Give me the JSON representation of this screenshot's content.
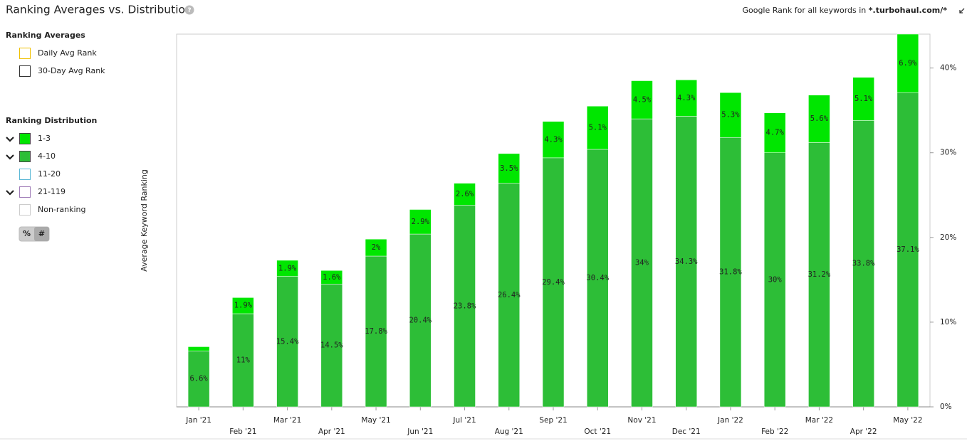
{
  "header": {
    "prefix": "Google Rank for all keywords in ",
    "domain": "*.turbohaul.com/*"
  },
  "legend": {
    "averages_title": "Ranking Averages",
    "averages_items": [
      {
        "name": "Daily Avg Rank",
        "color": "#f0c000"
      },
      {
        "name": "30-Day Avg Rank",
        "color": "#333333"
      }
    ],
    "distribution_title": "Ranking Distribution",
    "distribution_extra": [
      {
        "name": "11-20",
        "color": "#5bb8d6"
      },
      {
        "name": "21-119",
        "color": "#a07db8"
      },
      {
        "name": "Non-ranking",
        "color": "#cccccc"
      }
    ],
    "toggle": [
      "%",
      "#"
    ]
  },
  "chart_data": {
    "type": "stacked-bar",
    "title": "Ranking Averages vs. Distribution",
    "y_label": "Average Keyword Ranking",
    "categories": [
      "Jan '21",
      "Feb '21",
      "Mar '21",
      "Apr '21",
      "May '21",
      "Jun '21",
      "Jul '21",
      "Aug '21",
      "Sep '21",
      "Oct '21",
      "Nov '21",
      "Dec '21",
      "Jan '22",
      "Feb '22",
      "Mar '22",
      "Apr '22",
      "May '22"
    ],
    "series": [
      {
        "name": "4-10",
        "color": "#2dbe37",
        "values": [
          6.6,
          11,
          15.4,
          14.5,
          17.8,
          20.4,
          23.8,
          26.4,
          29.4,
          30.4,
          34,
          34.3,
          31.8,
          30,
          31.2,
          33.8,
          37.1
        ],
        "value_labels": [
          "6.6%",
          "11%",
          "15.4%",
          "14.5%",
          "17.8%",
          "20.4%",
          "23.8%",
          "26.4%",
          "29.4%",
          "30.4%",
          "34%",
          "34.3%",
          "31.8%",
          "30%",
          "31.2%",
          "33.8%",
          "37.1%"
        ]
      },
      {
        "name": "1-3",
        "color": "#00e600",
        "values": [
          0.5,
          1.9,
          1.9,
          1.6,
          2,
          2.9,
          2.6,
          3.5,
          4.3,
          5.1,
          4.5,
          4.3,
          5.3,
          4.7,
          5.6,
          5.1,
          6.9
        ],
        "value_labels": [
          null,
          "1.9%",
          "1.9%",
          "1.6%",
          "2%",
          "2.9%",
          "2.6%",
          "3.5%",
          "4.3%",
          "5.1%",
          "4.5%",
          "4.3%",
          "5.3%",
          "4.7%",
          "5.6%",
          "5.1%",
          "6.9%"
        ]
      }
    ],
    "ylim": [
      0,
      44
    ],
    "yticks": [
      {
        "value": 0,
        "label": "0%"
      },
      {
        "value": 10,
        "label": "10%"
      },
      {
        "value": 20,
        "label": "20%"
      },
      {
        "value": 30,
        "label": "30%"
      },
      {
        "value": 40,
        "label": "40%"
      }
    ]
  }
}
